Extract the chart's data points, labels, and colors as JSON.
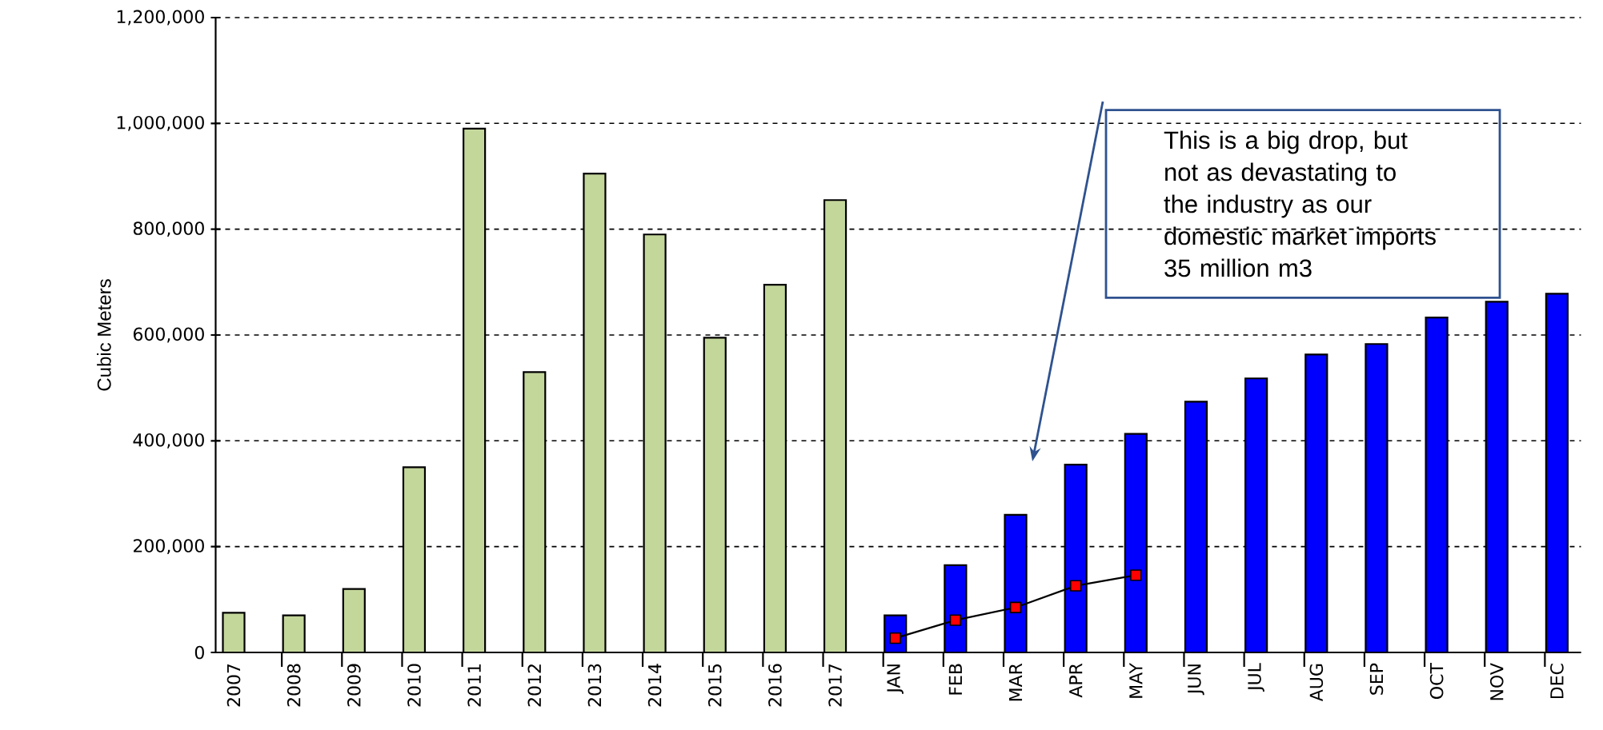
{
  "chart_data": {
    "type": "bar",
    "ylabel": "Cubic Meters",
    "categories": [
      "2007",
      "2008",
      "2009",
      "2010",
      "2011",
      "2012",
      "2013",
      "2014",
      "2015",
      "2016",
      "2017",
      "JAN",
      "FEB",
      "MAR",
      "APR",
      "MAY",
      "JUN",
      "JUL",
      "AUG",
      "SEP",
      "OCT",
      "NOV",
      "DEC"
    ],
    "series": [
      {
        "color": "#c4d79b",
        "values": [
          75000,
          70000,
          120000,
          350000,
          990000,
          530000,
          905000,
          790000,
          595000,
          695000,
          855000,
          null,
          null,
          null,
          null,
          null,
          null,
          null,
          null,
          null,
          null,
          null,
          null
        ]
      },
      {
        "color": "#0000ff",
        "values": [
          null,
          null,
          null,
          null,
          null,
          null,
          null,
          null,
          null,
          null,
          null,
          70000,
          165000,
          260000,
          355000,
          413000,
          474000,
          518000,
          563000,
          583000,
          633000,
          663000,
          678000
        ]
      },
      {
        "type": "line",
        "color": "#000000",
        "marker": "square",
        "values": [
          null,
          null,
          null,
          null,
          null,
          null,
          null,
          null,
          null,
          null,
          null,
          27000,
          61000,
          85000,
          126000,
          146000,
          null,
          null,
          null,
          null,
          null,
          null,
          null
        ]
      }
    ],
    "ylim": [
      0,
      1200000
    ],
    "yticks": [
      {
        "value": 0,
        "label": "0"
      },
      {
        "value": 200000,
        "label": "200,000"
      },
      {
        "value": 400000,
        "label": "400,000"
      },
      {
        "value": 600000,
        "label": "600,000"
      },
      {
        "value": 800000,
        "label": "800,000"
      },
      {
        "value": 1000000,
        "label": "1,000,000"
      },
      {
        "value": 1200000,
        "label": "1,200,000"
      }
    ],
    "grid": "y",
    "annotations": [
      "This is a big drop, but not as devastating to the industry as our domestic market imports 35 million m3"
    ]
  }
}
